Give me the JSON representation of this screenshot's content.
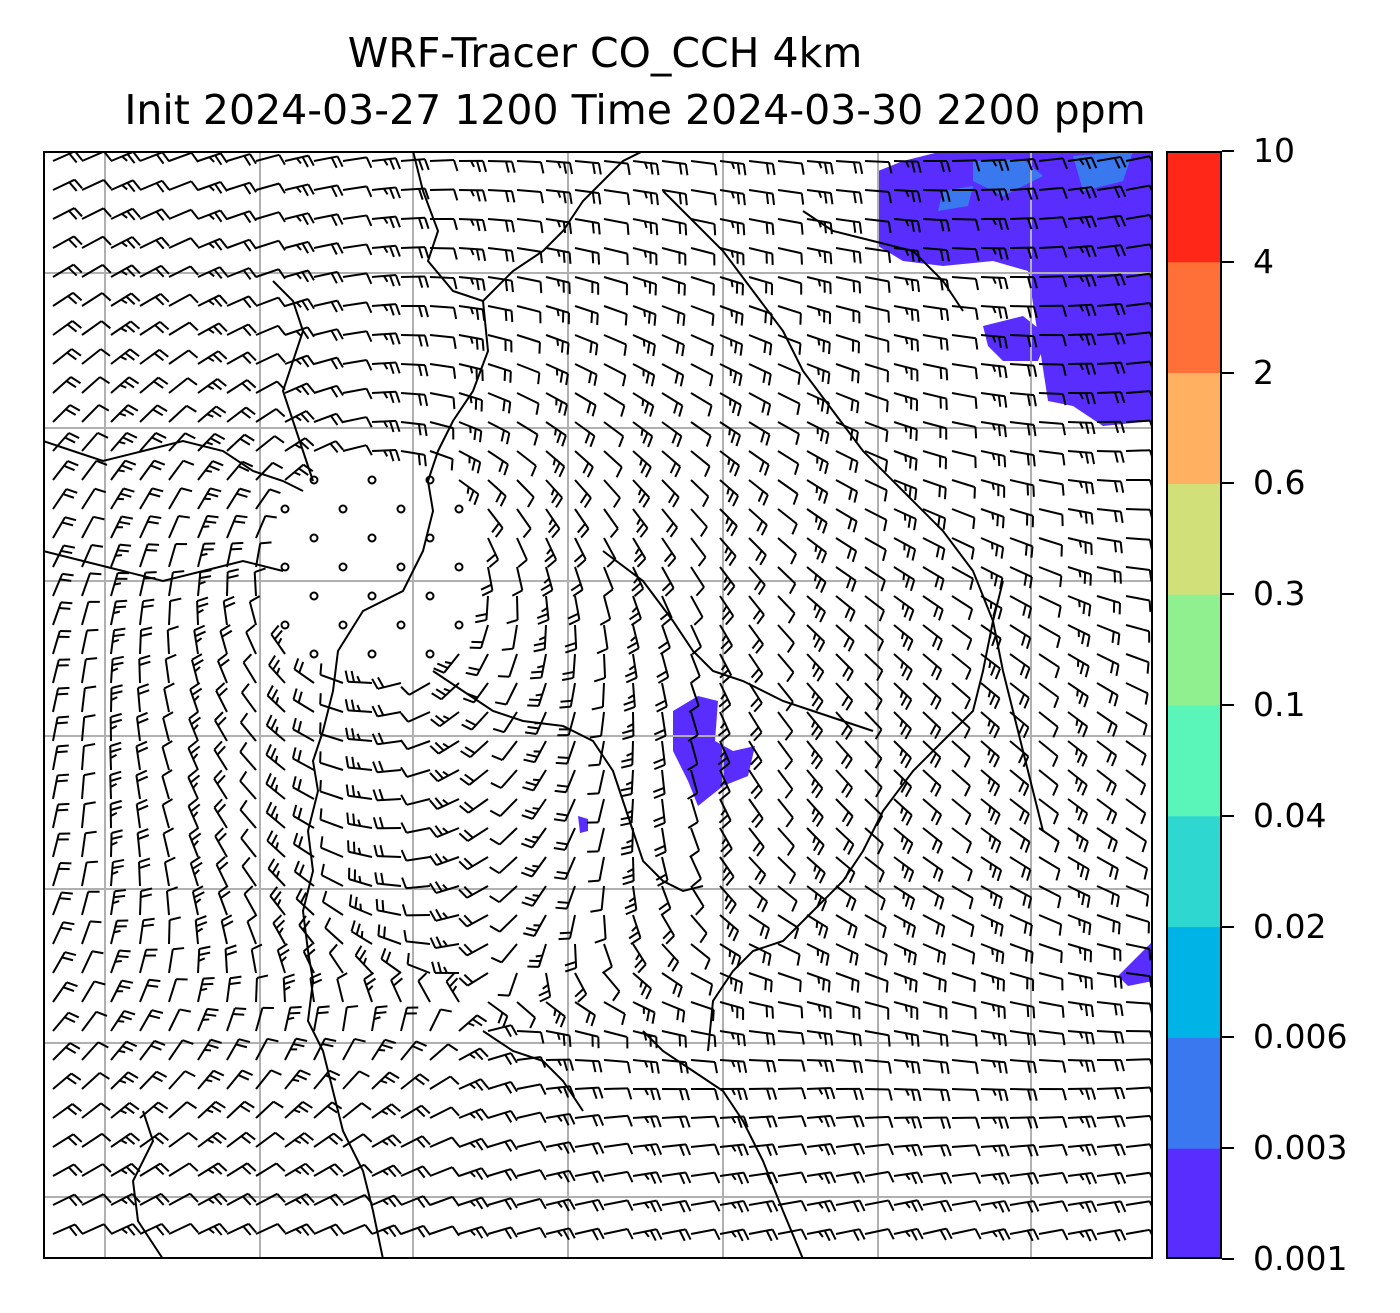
{
  "title": {
    "line1": "WRF-Tracer CO_CCH 4km",
    "line2": "Init 2024-03-27 1200 Time 2024-03-30 2200 ppm"
  },
  "colorbar": {
    "levels": [
      "0.001",
      "0.003",
      "0.006",
      "0.02",
      "0.04",
      "0.1",
      "0.3",
      "0.6",
      "2",
      "4",
      "10"
    ],
    "colors": [
      "#5a2dff",
      "#3a78f0",
      "#00b3e6",
      "#2ed8d0",
      "#5af5b8",
      "#90f090",
      "#d2e07a",
      "#ffb060",
      "#ff7038",
      "#ff2818"
    ]
  },
  "map": {
    "tracer_color": "#5a2dff",
    "tracer_color_light": "#3a78f0",
    "gridline_color": "#b0b0b0",
    "barb_color": "#000000"
  }
}
